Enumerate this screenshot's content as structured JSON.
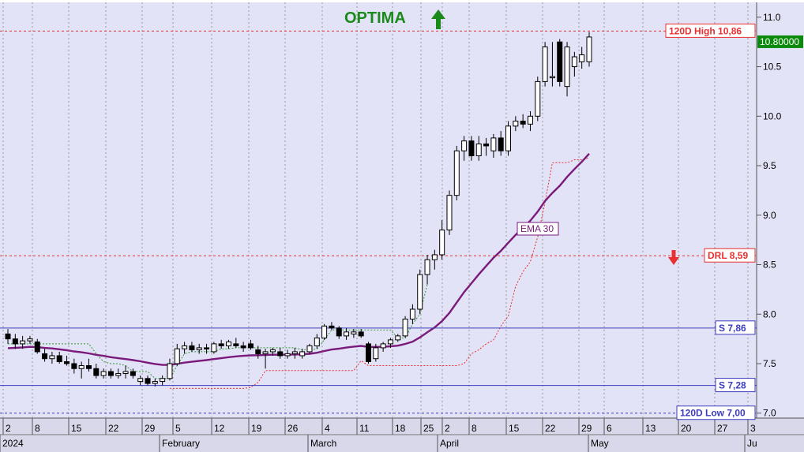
{
  "header": {
    "ticker": "OPTIMA"
  },
  "chart_data": {
    "type": "candlestick",
    "y_axis": {
      "range": [
        6.95,
        11.15
      ],
      "ticks": [
        "7.0",
        "7.5",
        "8.0",
        "8.5",
        "9.0",
        "9.5",
        "10.0",
        "10.5",
        "11.0"
      ]
    },
    "x_axis": {
      "day_ticks": [
        "2",
        "8",
        "15",
        "22",
        "29",
        "5",
        "12",
        "19",
        "26",
        "4",
        "11",
        "18",
        "25",
        "2",
        "8",
        "15",
        "22",
        "29",
        "6",
        "13",
        "20",
        "27",
        "3"
      ],
      "month_labels": [
        "2024",
        "February",
        "March",
        "April",
        "May",
        "Ju"
      ]
    },
    "last_price_label": "10.80000",
    "levels": [
      {
        "name": "120D High",
        "label": "120D High 10,86",
        "value": 10.86,
        "style": "dashed",
        "color": "#e83030"
      },
      {
        "name": "DRL",
        "label": "DRL 8,59",
        "value": 8.59,
        "style": "dashed",
        "color": "#e83030"
      },
      {
        "name": "S1",
        "label": "S 7,86",
        "value": 7.86,
        "style": "solid",
        "color": "#3b3bbf"
      },
      {
        "name": "S2",
        "label": "S 7,28",
        "value": 7.28,
        "style": "solid",
        "color": "#3b3bbf"
      },
      {
        "name": "120D Low",
        "label": "120D Low 7,00",
        "value": 7.0,
        "style": "dashed",
        "color": "#3b3bbf"
      }
    ],
    "ema_label": "EMA 30",
    "candles": [
      [
        7.8,
        7.85,
        7.7,
        7.75
      ],
      [
        7.75,
        7.8,
        7.65,
        7.7
      ],
      [
        7.7,
        7.78,
        7.65,
        7.73
      ],
      [
        7.73,
        7.78,
        7.7,
        7.75
      ],
      [
        7.72,
        7.75,
        7.6,
        7.62
      ],
      [
        7.6,
        7.65,
        7.52,
        7.55
      ],
      [
        7.55,
        7.62,
        7.5,
        7.58
      ],
      [
        7.58,
        7.62,
        7.5,
        7.52
      ],
      [
        7.52,
        7.58,
        7.48,
        7.5
      ],
      [
        7.5,
        7.55,
        7.4,
        7.45
      ],
      [
        7.45,
        7.52,
        7.35,
        7.48
      ],
      [
        7.48,
        7.55,
        7.42,
        7.45
      ],
      [
        7.45,
        7.5,
        7.35,
        7.38
      ],
      [
        7.38,
        7.45,
        7.35,
        7.42
      ],
      [
        7.42,
        7.45,
        7.35,
        7.38
      ],
      [
        7.38,
        7.45,
        7.35,
        7.4
      ],
      [
        7.4,
        7.48,
        7.35,
        7.42
      ],
      [
        7.42,
        7.45,
        7.35,
        7.38
      ],
      [
        7.32,
        7.38,
        7.28,
        7.35
      ],
      [
        7.35,
        7.38,
        7.28,
        7.3
      ],
      [
        7.3,
        7.35,
        7.27,
        7.32
      ],
      [
        7.32,
        7.38,
        7.28,
        7.35
      ],
      [
        7.35,
        7.55,
        7.33,
        7.5
      ],
      [
        7.5,
        7.7,
        7.48,
        7.65
      ],
      [
        7.65,
        7.72,
        7.6,
        7.68
      ],
      [
        7.68,
        7.72,
        7.62,
        7.64
      ],
      [
        7.64,
        7.7,
        7.6,
        7.66
      ],
      [
        7.66,
        7.7,
        7.6,
        7.65
      ],
      [
        7.62,
        7.72,
        7.6,
        7.7
      ],
      [
        7.7,
        7.74,
        7.65,
        7.68
      ],
      [
        7.68,
        7.74,
        7.65,
        7.72
      ],
      [
        7.7,
        7.76,
        7.66,
        7.68
      ],
      [
        7.68,
        7.72,
        7.62,
        7.66
      ],
      [
        7.7,
        7.74,
        7.64,
        7.66
      ],
      [
        7.64,
        7.68,
        7.55,
        7.6
      ],
      [
        7.6,
        7.65,
        7.45,
        7.62
      ],
      [
        7.62,
        7.66,
        7.58,
        7.64
      ],
      [
        7.62,
        7.66,
        7.55,
        7.58
      ],
      [
        7.58,
        7.64,
        7.55,
        7.6
      ],
      [
        7.6,
        7.66,
        7.55,
        7.62
      ],
      [
        7.58,
        7.65,
        7.55,
        7.62
      ],
      [
        7.62,
        7.7,
        7.6,
        7.68
      ],
      [
        7.68,
        7.8,
        7.65,
        7.76
      ],
      [
        7.76,
        7.9,
        7.74,
        7.88
      ],
      [
        7.88,
        7.92,
        7.84,
        7.86
      ],
      [
        7.86,
        7.88,
        7.75,
        7.78
      ],
      [
        7.78,
        7.86,
        7.74,
        7.82
      ],
      [
        7.8,
        7.85,
        7.76,
        7.82
      ],
      [
        7.82,
        7.85,
        7.76,
        7.78
      ],
      [
        7.7,
        7.72,
        7.5,
        7.52
      ],
      [
        7.55,
        7.7,
        7.52,
        7.66
      ],
      [
        7.66,
        7.72,
        7.62,
        7.7
      ],
      [
        7.7,
        7.76,
        7.66,
        7.74
      ],
      [
        7.74,
        7.8,
        7.72,
        7.78
      ],
      [
        7.78,
        7.98,
        7.76,
        7.95
      ],
      [
        7.95,
        8.1,
        7.9,
        8.05
      ],
      [
        8.05,
        8.45,
        8.0,
        8.4
      ],
      [
        8.4,
        8.6,
        8.3,
        8.55
      ],
      [
        8.55,
        8.65,
        8.45,
        8.6
      ],
      [
        8.6,
        8.95,
        8.55,
        8.85
      ],
      [
        8.85,
        9.25,
        8.8,
        9.2
      ],
      [
        9.2,
        9.7,
        9.15,
        9.65
      ],
      [
        9.65,
        9.8,
        9.55,
        9.75
      ],
      [
        9.75,
        9.8,
        9.55,
        9.6
      ],
      [
        9.6,
        9.8,
        9.55,
        9.72
      ],
      [
        9.72,
        9.78,
        9.6,
        9.7
      ],
      [
        9.65,
        9.82,
        9.58,
        9.78
      ],
      [
        9.78,
        9.85,
        9.6,
        9.65
      ],
      [
        9.65,
        9.95,
        9.6,
        9.9
      ],
      [
        9.9,
        10.0,
        9.85,
        9.95
      ],
      [
        9.95,
        10.02,
        9.88,
        9.92
      ],
      [
        9.92,
        10.05,
        9.85,
        10.0
      ],
      [
        10.0,
        10.4,
        9.95,
        10.35
      ],
      [
        10.35,
        10.75,
        10.3,
        10.7
      ],
      [
        10.4,
        10.75,
        10.3,
        10.4
      ],
      [
        10.75,
        10.78,
        10.3,
        10.35
      ],
      [
        10.3,
        10.75,
        10.2,
        10.7
      ],
      [
        10.5,
        10.65,
        10.4,
        10.6
      ],
      [
        10.55,
        10.7,
        10.48,
        10.62
      ],
      [
        10.55,
        10.85,
        10.5,
        10.8
      ]
    ]
  }
}
